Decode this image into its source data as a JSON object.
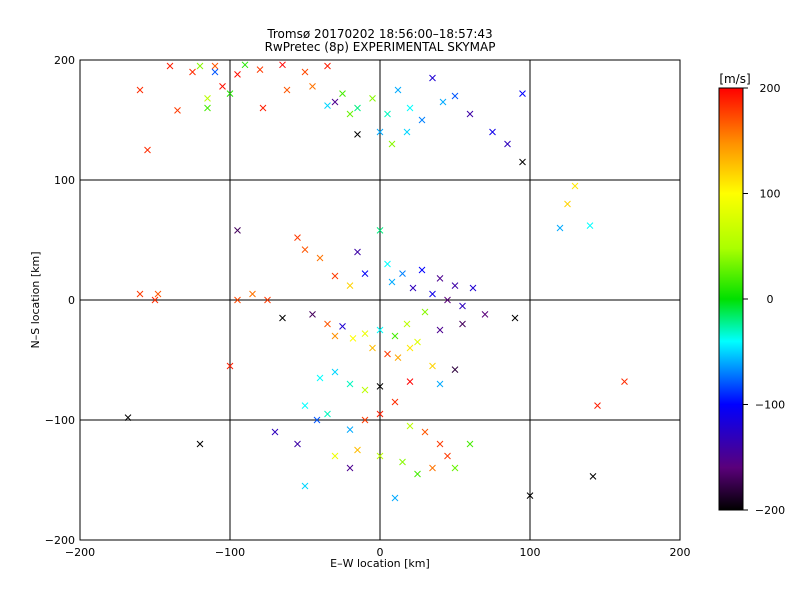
{
  "chart_data": {
    "type": "scatter",
    "title": "Tromsø 20170202 18:56:00–18:57:43",
    "subtitle": "RwPretec (8p) EXPERIMENTAL SKYMAP",
    "xlabel": "E–W location [km]",
    "ylabel": "N–S location [km]",
    "xlim": [
      -200,
      200
    ],
    "ylim": [
      -200,
      200
    ],
    "xticks": [
      -200,
      -100,
      0,
      100,
      200
    ],
    "yticks": [
      -200,
      -100,
      0,
      100,
      200
    ],
    "grid": true,
    "colorbar": {
      "label": "[m/s]",
      "range": [
        -200,
        200
      ],
      "ticks": [
        200,
        100,
        0,
        -100,
        -200
      ],
      "colormap": "rainbow (black-purple-blue-cyan-green-yellow-red)"
    },
    "marker_kinds": [
      "cross",
      "dot"
    ],
    "points": [
      {
        "x": -140,
        "y": 195,
        "v": 190,
        "m": "x"
      },
      {
        "x": -125,
        "y": 190,
        "v": 185,
        "m": "x"
      },
      {
        "x": -110,
        "y": 195,
        "v": 170,
        "m": "x"
      },
      {
        "x": -95,
        "y": 188,
        "v": 195,
        "m": "x"
      },
      {
        "x": -80,
        "y": 192,
        "v": 180,
        "m": "x"
      },
      {
        "x": -65,
        "y": 196,
        "v": 200,
        "m": "x"
      },
      {
        "x": -50,
        "y": 190,
        "v": 175,
        "m": "x"
      },
      {
        "x": -35,
        "y": 195,
        "v": 190,
        "m": "x"
      },
      {
        "x": -160,
        "y": 175,
        "v": 185,
        "m": "x"
      },
      {
        "x": -135,
        "y": 158,
        "v": 180,
        "m": "x"
      },
      {
        "x": -115,
        "y": 168,
        "v": 60,
        "m": "x"
      },
      {
        "x": -105,
        "y": 178,
        "v": 195,
        "m": "x"
      },
      {
        "x": -78,
        "y": 160,
        "v": 190,
        "m": "x"
      },
      {
        "x": -62,
        "y": 175,
        "v": 170,
        "m": "x"
      },
      {
        "x": -45,
        "y": 178,
        "v": 160,
        "m": "x"
      },
      {
        "x": -155,
        "y": 125,
        "v": 185,
        "m": "x"
      },
      {
        "x": -120,
        "y": 195,
        "v": 40,
        "m": "x"
      },
      {
        "x": -100,
        "y": 172,
        "v": 10,
        "m": "x"
      },
      {
        "x": -115,
        "y": 160,
        "v": 20,
        "m": "x"
      },
      {
        "x": -35,
        "y": 162,
        "v": -50,
        "m": "x"
      },
      {
        "x": -25,
        "y": 172,
        "v": 20,
        "m": "x"
      },
      {
        "x": -15,
        "y": 160,
        "v": -20,
        "m": "x"
      },
      {
        "x": -5,
        "y": 168,
        "v": 40,
        "m": "x"
      },
      {
        "x": 5,
        "y": 155,
        "v": -30,
        "m": "x"
      },
      {
        "x": 12,
        "y": 175,
        "v": -60,
        "m": "x"
      },
      {
        "x": 20,
        "y": 160,
        "v": -40,
        "m": "x"
      },
      {
        "x": 28,
        "y": 150,
        "v": -70,
        "m": "x"
      },
      {
        "x": 35,
        "y": 185,
        "v": -120,
        "m": "x"
      },
      {
        "x": 42,
        "y": 165,
        "v": -60,
        "m": "x"
      },
      {
        "x": 50,
        "y": 170,
        "v": -80,
        "m": "x"
      },
      {
        "x": 60,
        "y": 155,
        "v": -140,
        "m": "x"
      },
      {
        "x": 75,
        "y": 140,
        "v": -110,
        "m": "x"
      },
      {
        "x": 85,
        "y": 130,
        "v": -130,
        "m": "x"
      },
      {
        "x": 95,
        "y": 172,
        "v": -100,
        "m": "x"
      },
      {
        "x": 95,
        "y": 115,
        "v": -200,
        "m": "x"
      },
      {
        "x": -15,
        "y": 138,
        "v": -200,
        "m": "x"
      },
      {
        "x": 0,
        "y": 140,
        "v": -60,
        "m": "x"
      },
      {
        "x": 18,
        "y": 140,
        "v": -50,
        "m": "x"
      },
      {
        "x": 8,
        "y": 130,
        "v": 40,
        "m": "x"
      },
      {
        "x": -30,
        "y": 165,
        "v": -150,
        "m": "x"
      },
      {
        "x": -20,
        "y": 155,
        "v": 30,
        "m": "x"
      },
      {
        "x": 130,
        "y": 95,
        "v": 110,
        "m": "x"
      },
      {
        "x": 125,
        "y": 80,
        "v": 120,
        "m": "x"
      },
      {
        "x": 120,
        "y": 60,
        "v": -60,
        "m": "x"
      },
      {
        "x": 140,
        "y": 62,
        "v": -40,
        "m": "x"
      },
      {
        "x": -95,
        "y": 58,
        "v": -170,
        "m": "x"
      },
      {
        "x": -55,
        "y": 52,
        "v": 180,
        "m": "x"
      },
      {
        "x": -50,
        "y": 42,
        "v": 170,
        "m": "x"
      },
      {
        "x": -40,
        "y": 35,
        "v": 160,
        "m": "x"
      },
      {
        "x": -30,
        "y": 20,
        "v": 180,
        "m": "x"
      },
      {
        "x": -20,
        "y": 12,
        "v": 120,
        "m": "x"
      },
      {
        "x": -15,
        "y": 40,
        "v": -140,
        "m": "x"
      },
      {
        "x": -10,
        "y": 22,
        "v": -100,
        "m": "x"
      },
      {
        "x": 0,
        "y": 58,
        "v": -20,
        "m": "x"
      },
      {
        "x": 5,
        "y": 30,
        "v": -40,
        "m": "x"
      },
      {
        "x": 8,
        "y": 15,
        "v": -60,
        "m": "x"
      },
      {
        "x": 15,
        "y": 22,
        "v": -70,
        "m": "x"
      },
      {
        "x": 22,
        "y": 10,
        "v": -130,
        "m": "x"
      },
      {
        "x": 28,
        "y": 25,
        "v": -100,
        "m": "x"
      },
      {
        "x": 35,
        "y": 5,
        "v": -110,
        "m": "x"
      },
      {
        "x": 40,
        "y": 18,
        "v": -150,
        "m": "x"
      },
      {
        "x": 45,
        "y": 0,
        "v": -160,
        "m": "x"
      },
      {
        "x": 50,
        "y": 12,
        "v": -140,
        "m": "x"
      },
      {
        "x": 55,
        "y": -5,
        "v": -130,
        "m": "x"
      },
      {
        "x": 62,
        "y": 10,
        "v": -120,
        "m": "x"
      },
      {
        "x": 30,
        "y": -10,
        "v": 40,
        "m": "x"
      },
      {
        "x": 18,
        "y": -20,
        "v": 60,
        "m": "x"
      },
      {
        "x": 10,
        "y": -30,
        "v": 20,
        "m": "x"
      },
      {
        "x": 25,
        "y": -35,
        "v": 80,
        "m": "x"
      },
      {
        "x": 40,
        "y": -25,
        "v": -150,
        "m": "x"
      },
      {
        "x": 55,
        "y": -20,
        "v": -170,
        "m": "x"
      },
      {
        "x": 70,
        "y": -12,
        "v": -160,
        "m": "x"
      },
      {
        "x": 90,
        "y": -15,
        "v": -200,
        "m": "x"
      },
      {
        "x": -160,
        "y": 5,
        "v": 180,
        "m": "x"
      },
      {
        "x": -148,
        "y": 5,
        "v": 170,
        "m": "x"
      },
      {
        "x": -150,
        "y": 0,
        "v": 185,
        "m": "x"
      },
      {
        "x": -95,
        "y": 0,
        "v": 175,
        "m": "x"
      },
      {
        "x": -75,
        "y": 0,
        "v": 180,
        "m": "x"
      },
      {
        "x": -85,
        "y": 5,
        "v": 160,
        "m": "x"
      },
      {
        "x": -65,
        "y": -15,
        "v": -200,
        "m": "x"
      },
      {
        "x": -45,
        "y": -12,
        "v": -170,
        "m": "x"
      },
      {
        "x": -35,
        "y": -20,
        "v": 170,
        "m": "x"
      },
      {
        "x": -30,
        "y": -30,
        "v": 150,
        "m": "x"
      },
      {
        "x": -25,
        "y": -22,
        "v": -120,
        "m": "x"
      },
      {
        "x": -18,
        "y": -32,
        "v": 100,
        "m": "x"
      },
      {
        "x": -10,
        "y": -28,
        "v": 90,
        "m": "x"
      },
      {
        "x": -5,
        "y": -40,
        "v": 130,
        "m": "x"
      },
      {
        "x": 0,
        "y": -25,
        "v": -40,
        "m": "x"
      },
      {
        "x": 5,
        "y": -45,
        "v": 180,
        "m": "x"
      },
      {
        "x": 12,
        "y": -48,
        "v": 140,
        "m": "x"
      },
      {
        "x": 20,
        "y": -40,
        "v": 110,
        "m": "x"
      },
      {
        "x": -100,
        "y": -55,
        "v": 190,
        "m": "x"
      },
      {
        "x": -40,
        "y": -65,
        "v": -40,
        "m": "x"
      },
      {
        "x": -30,
        "y": -60,
        "v": -50,
        "m": "x"
      },
      {
        "x": -20,
        "y": -70,
        "v": -30,
        "m": "x"
      },
      {
        "x": -10,
        "y": -75,
        "v": 60,
        "m": "x"
      },
      {
        "x": 0,
        "y": -72,
        "v": -200,
        "m": "x"
      },
      {
        "x": 20,
        "y": -68,
        "v": 200,
        "m": "x"
      },
      {
        "x": 35,
        "y": -55,
        "v": 120,
        "m": "x"
      },
      {
        "x": 40,
        "y": -70,
        "v": -60,
        "m": "x"
      },
      {
        "x": 50,
        "y": -58,
        "v": -180,
        "m": "x"
      },
      {
        "x": 163,
        "y": -68,
        "v": 185,
        "m": "x"
      },
      {
        "x": 145,
        "y": -88,
        "v": 190,
        "m": "x"
      },
      {
        "x": -50,
        "y": -88,
        "v": -40,
        "m": "x"
      },
      {
        "x": -42,
        "y": -100,
        "v": -80,
        "m": "x"
      },
      {
        "x": -35,
        "y": -95,
        "v": -30,
        "m": "x"
      },
      {
        "x": -20,
        "y": -108,
        "v": -60,
        "m": "x"
      },
      {
        "x": -10,
        "y": -100,
        "v": 180,
        "m": "x"
      },
      {
        "x": 0,
        "y": -95,
        "v": 190,
        "m": "x"
      },
      {
        "x": 10,
        "y": -85,
        "v": 185,
        "m": "x"
      },
      {
        "x": 20,
        "y": -105,
        "v": 60,
        "m": "x"
      },
      {
        "x": 30,
        "y": -110,
        "v": 170,
        "m": "x"
      },
      {
        "x": 40,
        "y": -120,
        "v": 180,
        "m": "x"
      },
      {
        "x": -70,
        "y": -110,
        "v": -130,
        "m": "x"
      },
      {
        "x": -55,
        "y": -120,
        "v": -140,
        "m": "x"
      },
      {
        "x": -120,
        "y": -120,
        "v": -200,
        "m": "x"
      },
      {
        "x": -168,
        "y": -98,
        "v": -200,
        "m": "x"
      },
      {
        "x": -30,
        "y": -130,
        "v": 90,
        "m": "x"
      },
      {
        "x": -20,
        "y": -140,
        "v": -150,
        "m": "x"
      },
      {
        "x": -15,
        "y": -125,
        "v": 130,
        "m": "x"
      },
      {
        "x": 0,
        "y": -130,
        "v": 60,
        "m": "x"
      },
      {
        "x": 15,
        "y": -135,
        "v": 40,
        "m": "x"
      },
      {
        "x": 25,
        "y": -145,
        "v": 20,
        "m": "x"
      },
      {
        "x": 35,
        "y": -140,
        "v": 160,
        "m": "x"
      },
      {
        "x": 45,
        "y": -130,
        "v": 180,
        "m": "x"
      },
      {
        "x": 50,
        "y": -140,
        "v": 30,
        "m": "x"
      },
      {
        "x": 60,
        "y": -120,
        "v": 20,
        "m": "x"
      },
      {
        "x": 10,
        "y": -165,
        "v": -60,
        "m": "x"
      },
      {
        "x": -50,
        "y": -155,
        "v": -50,
        "m": "x"
      },
      {
        "x": 100,
        "y": -163,
        "v": -200,
        "m": "x"
      },
      {
        "x": 142,
        "y": -147,
        "v": -200,
        "m": "x"
      },
      {
        "x": -110,
        "y": 190,
        "v": -80,
        "m": "x"
      },
      {
        "x": -90,
        "y": 196,
        "v": 10,
        "m": "x"
      }
    ]
  }
}
